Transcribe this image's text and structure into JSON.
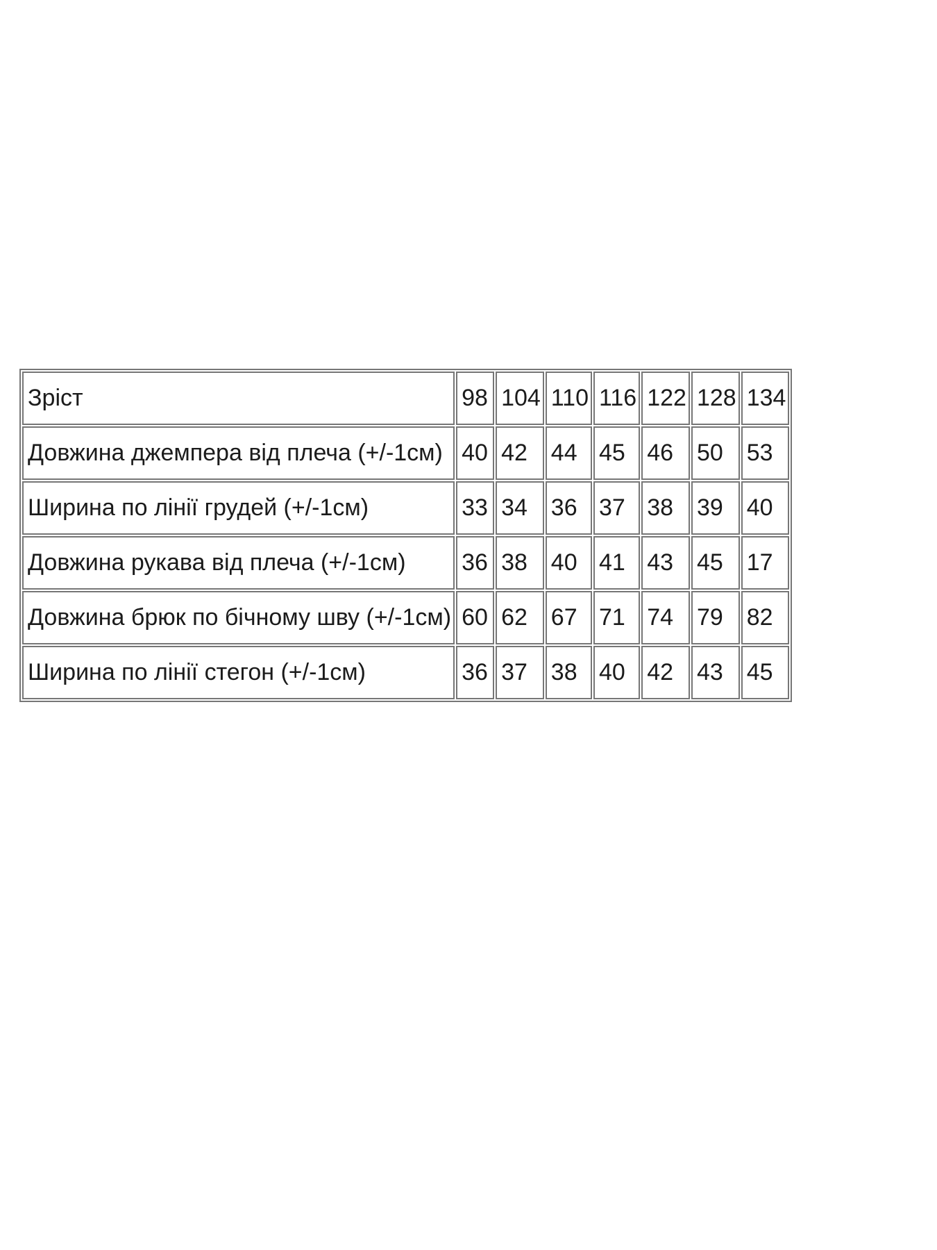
{
  "colors": {
    "border": "#767676",
    "text": "#1b1b1b",
    "background": "#ffffff"
  },
  "table": {
    "rows": [
      {
        "label": "Зріст",
        "values": [
          "98",
          "104",
          "110",
          "116",
          "122",
          "128",
          "134"
        ]
      },
      {
        "label": "Довжина джемпера від плеча (+/-1см)",
        "values": [
          "40",
          "42",
          "44",
          "45",
          "46",
          "50",
          "53"
        ]
      },
      {
        "label": "Ширина по лінії грудей (+/-1см)",
        "values": [
          "33",
          "34",
          "36",
          "37",
          "38",
          "39",
          "40"
        ]
      },
      {
        "label": "Довжина рукава від плеча (+/-1см)",
        "values": [
          "36",
          "38",
          "40",
          "41",
          "43",
          "45",
          "17"
        ]
      },
      {
        "label": "Довжина брюк по бічному шву (+/-1см)",
        "values": [
          "60",
          "62",
          "67",
          "71",
          "74",
          "79",
          "82"
        ]
      },
      {
        "label": "Ширина по лінії стегон (+/-1см)",
        "values": [
          "36",
          "37",
          "38",
          "40",
          "42",
          "43",
          "45"
        ]
      }
    ]
  },
  "chart_data": {
    "type": "table",
    "title": "",
    "categories": [
      98,
      104,
      110,
      116,
      122,
      128,
      134
    ],
    "category_label": "Зріст",
    "series": [
      {
        "name": "Довжина джемпера від плеча (+/-1см)",
        "values": [
          40,
          42,
          44,
          45,
          46,
          50,
          53
        ]
      },
      {
        "name": "Ширина по лінії грудей (+/-1см)",
        "values": [
          33,
          34,
          36,
          37,
          38,
          39,
          40
        ]
      },
      {
        "name": "Довжина рукава від плеча (+/-1см)",
        "values": [
          36,
          38,
          40,
          41,
          43,
          45,
          17
        ]
      },
      {
        "name": "Довжина брюк по бічному шву (+/-1см)",
        "values": [
          60,
          62,
          67,
          71,
          74,
          79,
          82
        ]
      },
      {
        "name": "Ширина по лінії стегон (+/-1см)",
        "values": [
          36,
          37,
          38,
          40,
          42,
          43,
          45
        ]
      }
    ]
  }
}
